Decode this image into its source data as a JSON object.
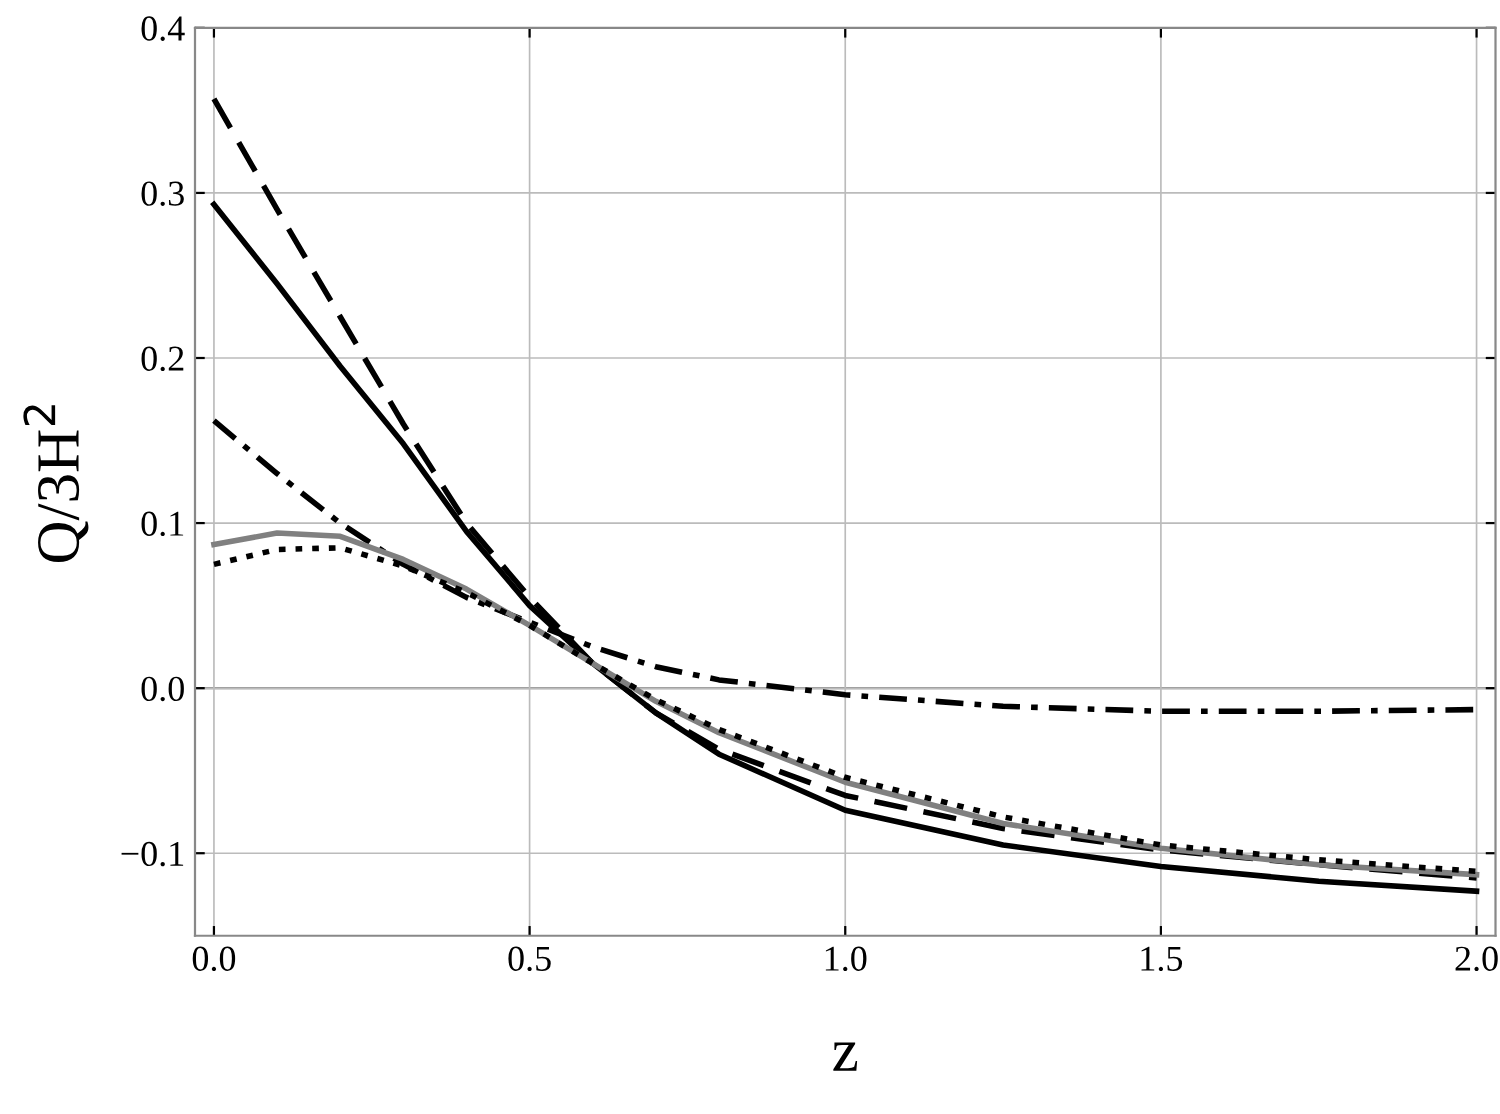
{
  "chart_data": {
    "type": "line",
    "xlabel": "z",
    "ylabel": "Q/3H$^{2}$",
    "x": [
      0,
      0.1,
      0.2,
      0.3,
      0.4,
      0.5,
      0.6,
      0.7,
      0.8,
      1.0,
      1.25,
      1.5,
      1.75,
      2.0
    ],
    "series": [
      {
        "color": "#000000",
        "line_style": "solid",
        "values": [
          0.293,
          0.245,
          0.195,
          0.148,
          0.095,
          0.05,
          0.015,
          -0.015,
          -0.04,
          -0.074,
          -0.095,
          -0.108,
          -0.117,
          -0.123
        ]
      },
      {
        "color": "#000000",
        "line_style": "dashed",
        "values": [
          0.357,
          0.29,
          0.225,
          0.16,
          0.1,
          0.055,
          0.015,
          -0.015,
          -0.037,
          -0.065,
          -0.085,
          -0.098,
          -0.107,
          -0.115
        ]
      },
      {
        "color": "#000000",
        "line_style": "dashdot",
        "values": [
          0.162,
          0.13,
          0.1,
          0.075,
          0.055,
          0.04,
          0.025,
          0.013,
          0.005,
          -0.004,
          -0.011,
          -0.014,
          -0.014,
          -0.013
        ]
      },
      {
        "color": "#808080",
        "line_style": "solid",
        "values": [
          0.087,
          0.094,
          0.092,
          0.078,
          0.06,
          0.038,
          0.015,
          -0.008,
          -0.027,
          -0.057,
          -0.082,
          -0.097,
          -0.107,
          -0.113
        ]
      },
      {
        "color": "#000000",
        "line_style": "dotted",
        "values": [
          0.075,
          0.084,
          0.085,
          0.074,
          0.058,
          0.038,
          0.015,
          -0.007,
          -0.025,
          -0.054,
          -0.078,
          -0.095,
          -0.104,
          -0.111
        ]
      }
    ],
    "xlim": [
      -0.03,
      2.03
    ],
    "ylim": [
      -0.15,
      0.4
    ],
    "xticks": [
      {
        "value": 0,
        "label": "0.0"
      },
      {
        "value": 0.5,
        "label": "0.5"
      },
      {
        "value": 1,
        "label": "1.0"
      },
      {
        "value": 1.5,
        "label": "1.5"
      },
      {
        "value": 2,
        "label": "2.0"
      }
    ],
    "yticks": [
      {
        "value": -0.1,
        "label": "−0.1"
      },
      {
        "value": 0,
        "label": "0.0"
      },
      {
        "value": 0.1,
        "label": "0.1"
      },
      {
        "value": 0.2,
        "label": "0.2"
      },
      {
        "value": 0.3,
        "label": "0.3"
      },
      {
        "value": 0.4,
        "label": "0.4"
      }
    ],
    "ref_lines": [
      {
        "axis": "y",
        "value": 0,
        "color": "#555555"
      }
    ],
    "grid": true,
    "marker": "none"
  }
}
